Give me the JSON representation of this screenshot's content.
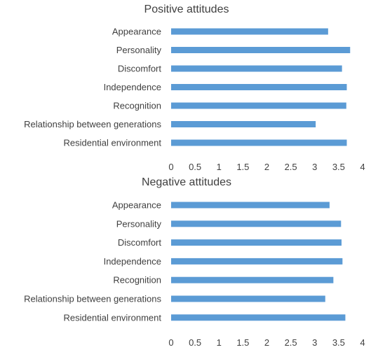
{
  "colors": {
    "bar": "#5B9BD5",
    "text": "#404040",
    "axis": "#d9d9d9"
  },
  "chart_data": [
    {
      "type": "bar",
      "orientation": "horizontal",
      "title": "Positive attitudes",
      "categories": [
        "Appearance",
        "Personality",
        "Discomfort",
        "Independence",
        "Recognition",
        "Relationship between generations",
        "Residential environment"
      ],
      "values": [
        3.28,
        3.74,
        3.57,
        3.67,
        3.66,
        3.02,
        3.67
      ],
      "xlim": [
        0,
        4
      ],
      "ticks": [
        "0",
        "0.5",
        "1",
        "1.5",
        "2",
        "2.5",
        "3",
        "3.5",
        "4"
      ],
      "grid": false
    },
    {
      "type": "bar",
      "orientation": "horizontal",
      "title": "Negative attitudes",
      "categories": [
        "Appearance",
        "Personality",
        "Discomfort",
        "Independence",
        "Recognition",
        "Relationship between generations",
        "Residential environment"
      ],
      "values": [
        3.31,
        3.55,
        3.56,
        3.58,
        3.39,
        3.22,
        3.64
      ],
      "xlim": [
        0,
        4
      ],
      "ticks": [
        "0",
        "0.5",
        "1",
        "1.5",
        "2",
        "2.5",
        "3",
        "3.5",
        "4"
      ],
      "grid": false
    }
  ]
}
